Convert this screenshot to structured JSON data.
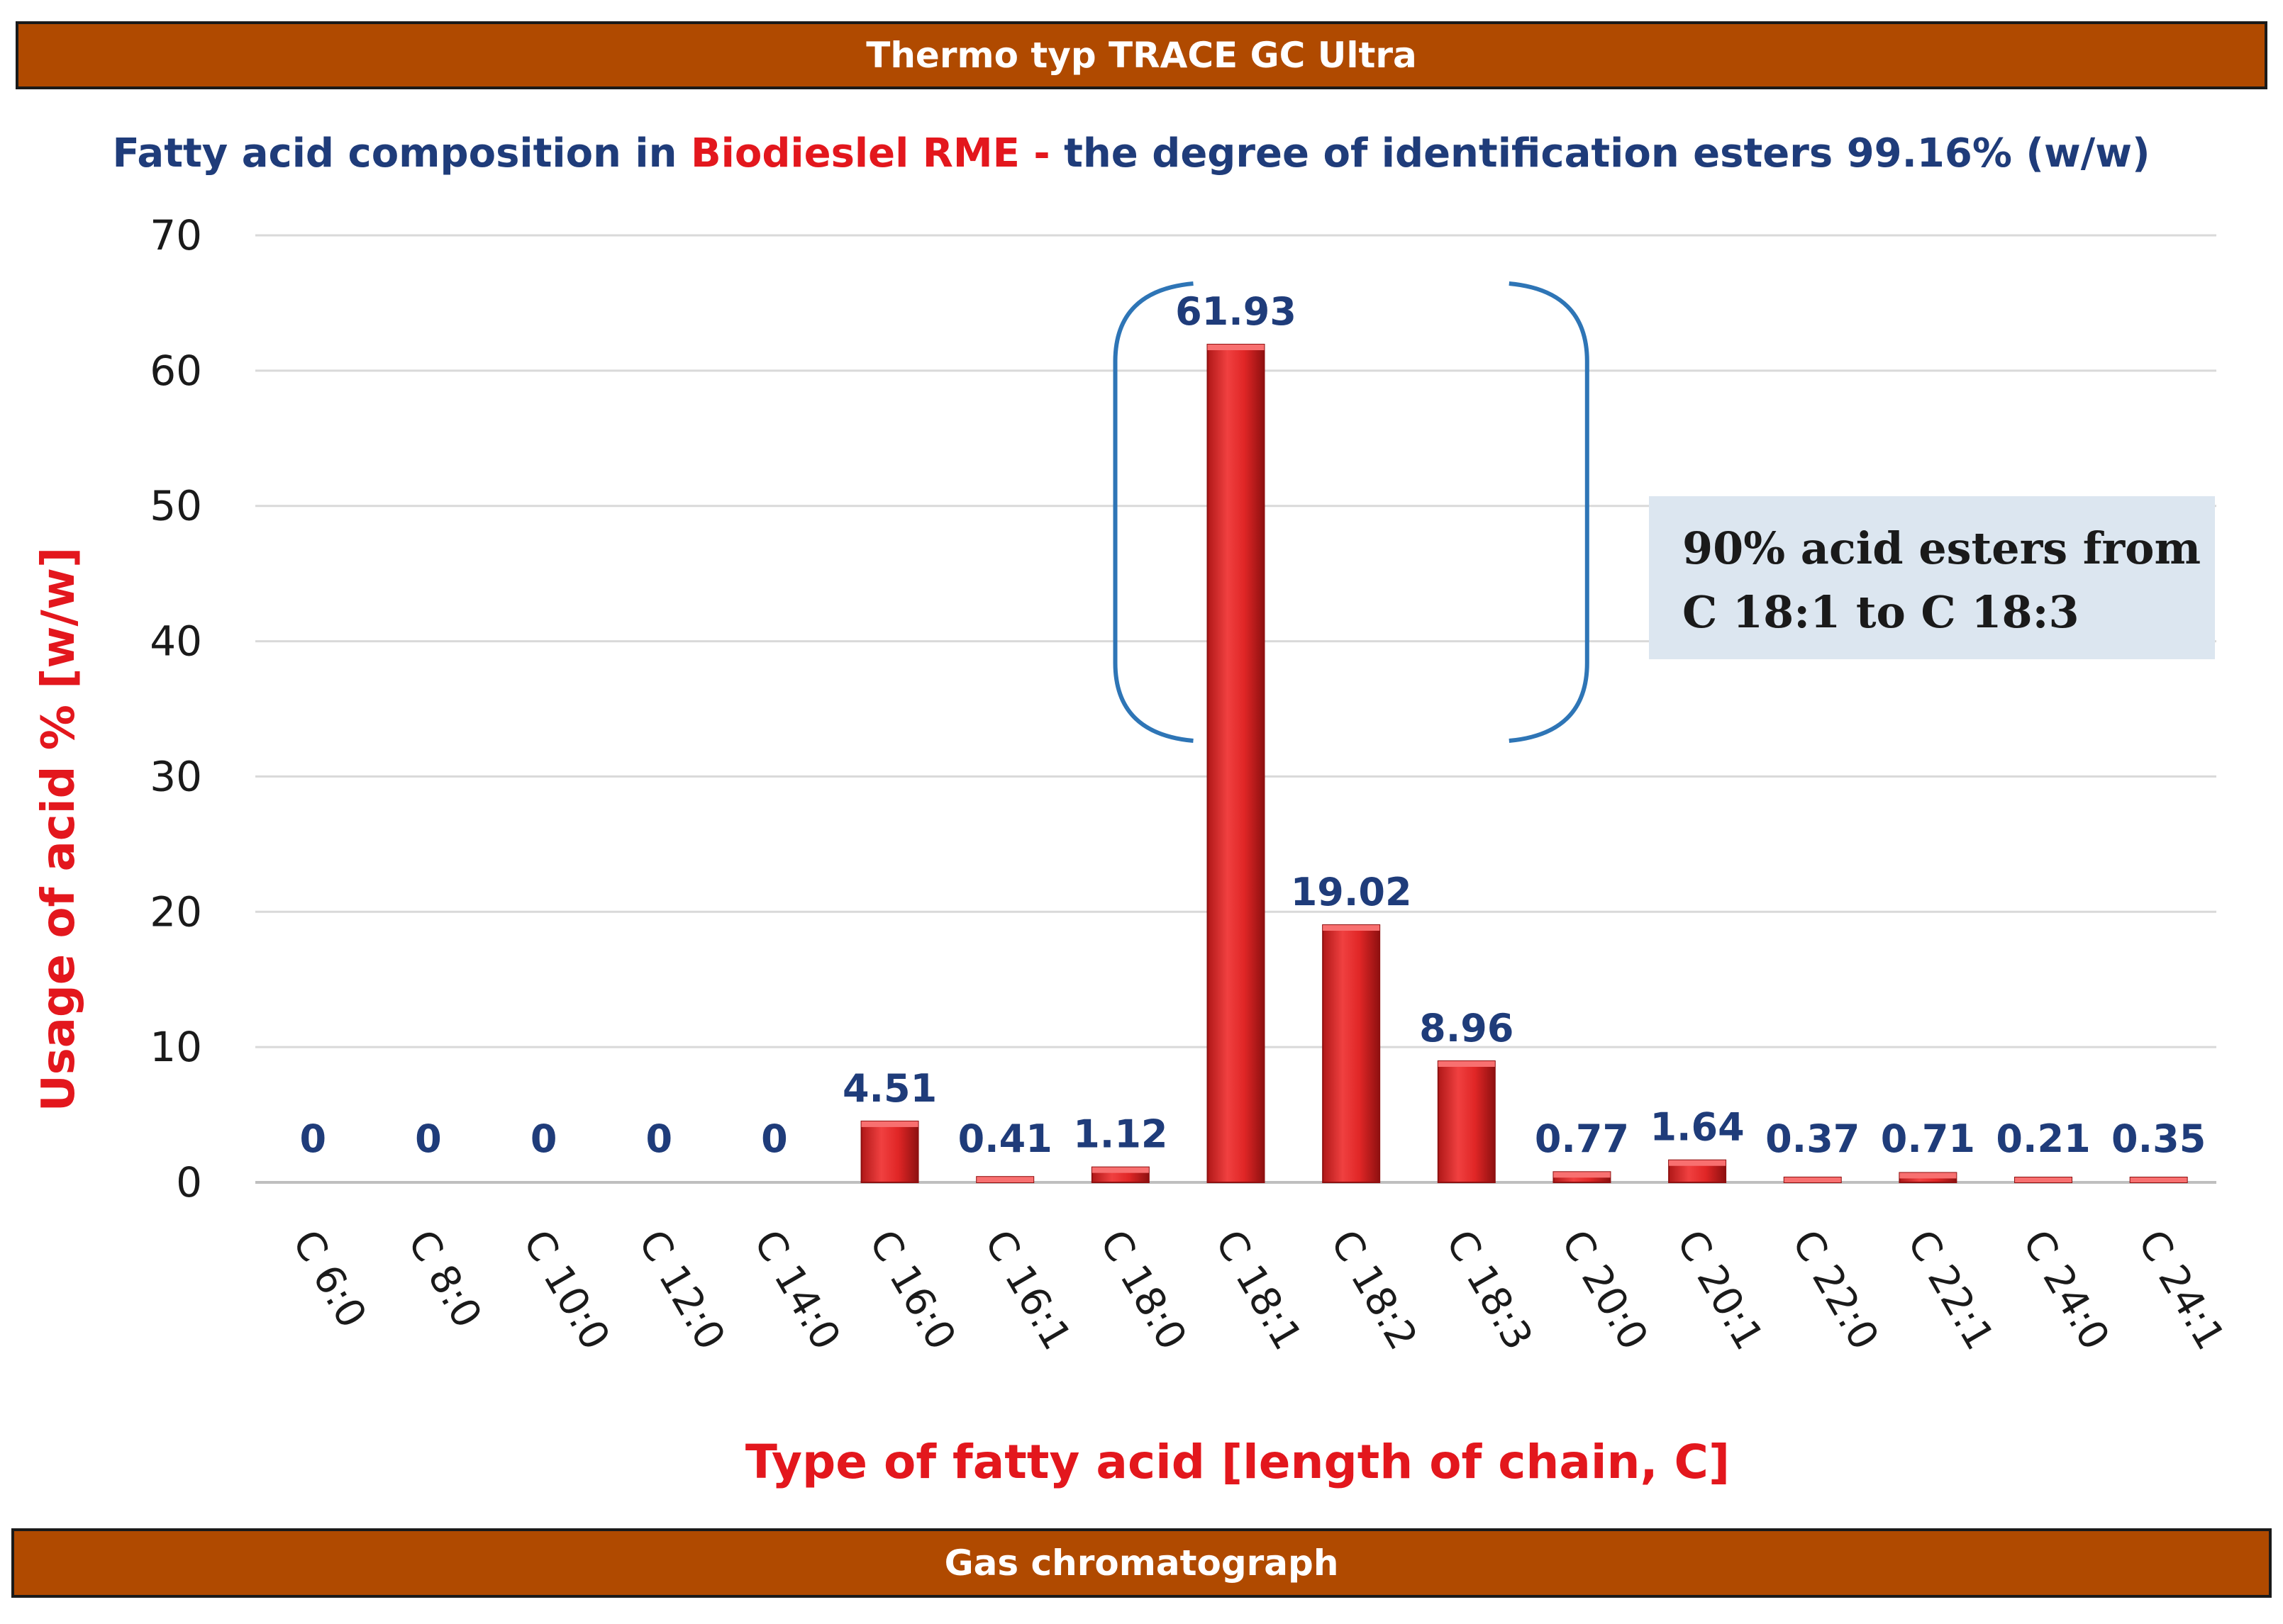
{
  "header": {
    "banner": "Thermo typ TRACE  GC Ultra"
  },
  "footer": {
    "banner": "Gas chromatograph"
  },
  "chart_data": {
    "type": "bar",
    "title_parts": [
      {
        "text": "Fatty acid composition in ",
        "color": "#1f3c7a"
      },
      {
        "text": "Biodieslel RME",
        "color": "#e3171d"
      },
      {
        "text": " - ",
        "color": "#e3171d"
      },
      {
        "text": "the degree of identification esters 99.16% (w/w)",
        "color": "#1f3c7a"
      }
    ],
    "categories": [
      "C 6:0",
      "C 8:0",
      "C 10:0",
      "C 12:0",
      "C 14:0",
      "C 16:0",
      "C 16:1",
      "C 18:0",
      "C 18:1",
      "C 18:2",
      "C 18:3",
      "C 20:0",
      "C 20:1",
      "C 22:0",
      "C 22:1",
      "C 24:0",
      "C 24:1"
    ],
    "values": [
      0,
      0,
      0,
      0,
      0,
      4.51,
      0.41,
      1.12,
      61.93,
      19.02,
      8.96,
      0.77,
      1.64,
      0.37,
      0.71,
      0.21,
      0.35
    ],
    "value_labels": [
      "0",
      "0",
      "0",
      "0",
      "0",
      "4.51",
      "0.41",
      "1.12",
      "61.93",
      "19.02",
      "8.96",
      "0.77",
      "1.64",
      "0.37",
      "0.71",
      "0.21",
      "0.35"
    ],
    "xlabel": "Type of fatty acid  [length of chain, C]",
    "ylabel": "Usage of acid % [w/w]",
    "ylim": [
      0,
      70
    ],
    "yticks": [
      0,
      10,
      20,
      30,
      40,
      50,
      60,
      70
    ],
    "grid": true,
    "bar_color": "#e02020",
    "label_color": "#1f3c7a",
    "axis_label_color": "#e3171d",
    "annotation": {
      "lines": [
        "90% acid esters from",
        "C 18:1 to C 18:3"
      ],
      "bracket_range": [
        "C 18:1",
        "C 18:3"
      ],
      "bracket_color": "#2e75b6",
      "box_color": "#dce6f0"
    }
  }
}
